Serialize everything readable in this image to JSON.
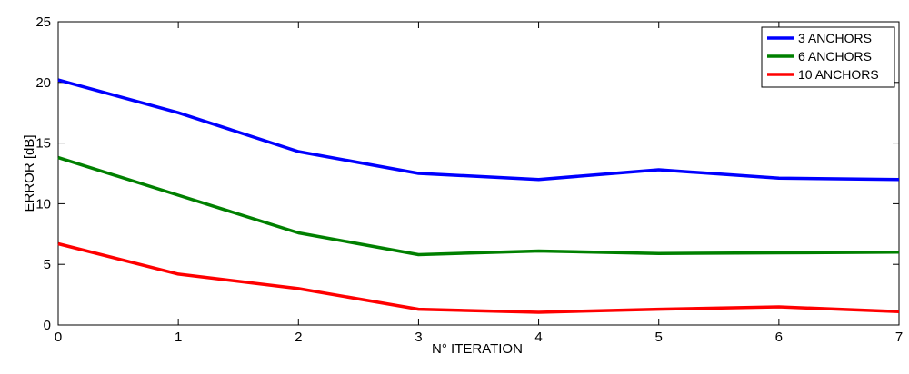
{
  "chart_data": {
    "type": "line",
    "title": "",
    "xlabel": "N° ITERATION",
    "ylabel": "ERROR [dB]",
    "x": [
      0,
      1,
      2,
      3,
      4,
      5,
      6,
      7
    ],
    "xlim": [
      0,
      7
    ],
    "ylim": [
      0,
      25
    ],
    "xticks": [
      0,
      1,
      2,
      3,
      4,
      5,
      6,
      7
    ],
    "yticks": [
      0,
      5,
      10,
      15,
      20,
      25
    ],
    "grid": false,
    "legend_position": "top-right",
    "series": [
      {
        "name": "3 ANCHORS",
        "color": "#0000ff",
        "values": [
          20.2,
          17.5,
          14.3,
          12.5,
          12.0,
          12.8,
          12.1,
          12.0
        ]
      },
      {
        "name": "6 ANCHORS",
        "color": "#008000",
        "values": [
          13.8,
          10.7,
          7.6,
          5.8,
          6.1,
          5.9,
          5.95,
          6.0
        ]
      },
      {
        "name": "10 ANCHORS",
        "color": "#ff0000",
        "values": [
          6.7,
          4.2,
          3.0,
          1.3,
          1.05,
          1.3,
          1.5,
          1.1
        ]
      }
    ]
  }
}
